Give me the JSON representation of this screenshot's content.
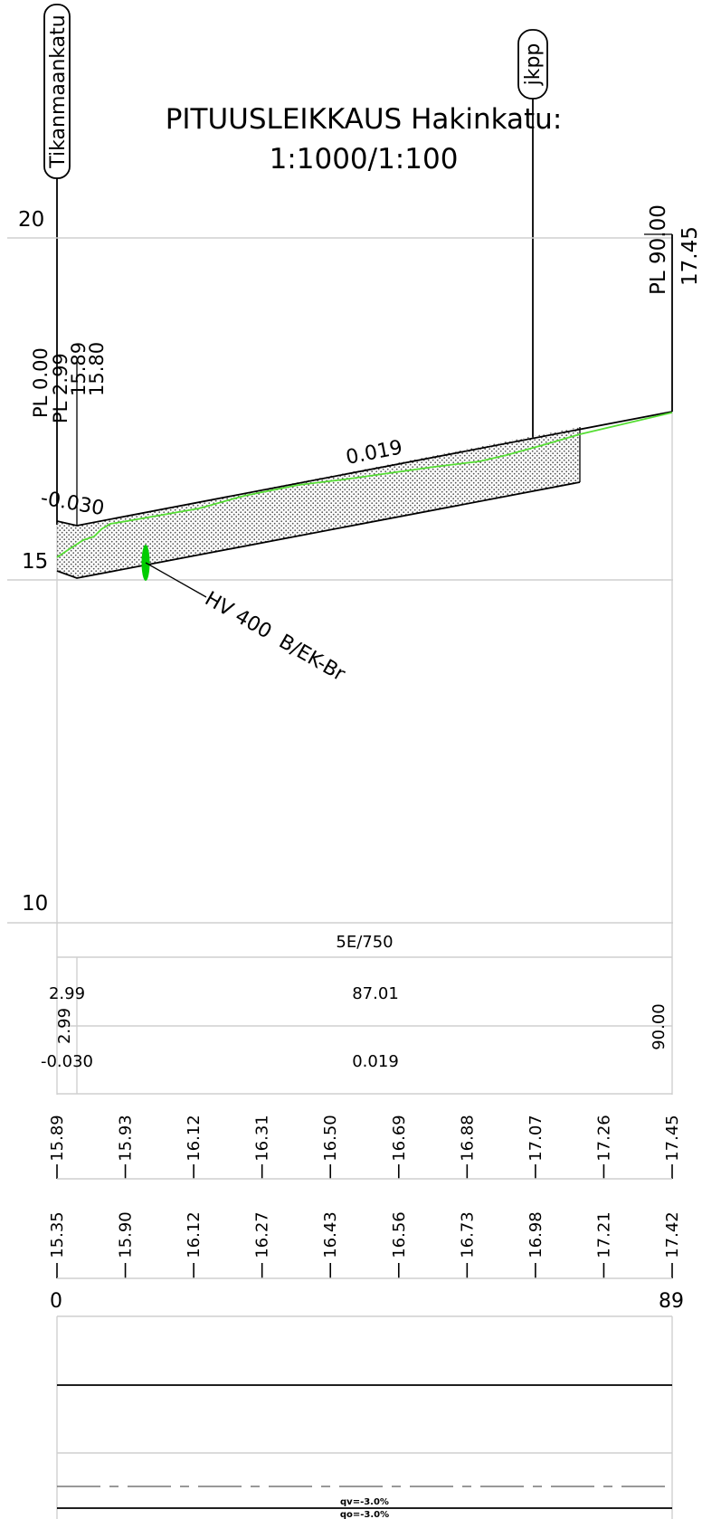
{
  "title_line1": "PITUUSLEIKKAUS Hakinkatu:",
  "title_line2": "1:1000/1:100",
  "street_tags": {
    "left": "Tikanmaankatu",
    "right": "jkpp"
  },
  "elevation_labels": [
    "20",
    "15",
    "10"
  ],
  "station_labels": {
    "pl0": "PL 0.00",
    "pl2": "PL 2.99",
    "v1589": "15.89",
    "v1580": "15.80",
    "pl90": "PL 90.00",
    "v1745": "17.45"
  },
  "grade_labels": {
    "top_left": "-0.030",
    "top_mid": "0.019"
  },
  "pipe_label": "HV 400  B/EK-Br",
  "band": {
    "curve_label": "5E/750",
    "len_left": "2.99",
    "len_mid": "87.01",
    "len_rot": "2.99",
    "end_rot": "90.00",
    "grade_left": "-0.030",
    "grade_mid": "0.019"
  },
  "design_heights": [
    "15.89",
    "15.93",
    "16.12",
    "16.31",
    "16.50",
    "16.69",
    "16.88",
    "17.07",
    "17.26",
    "17.45"
  ],
  "ground_heights": [
    "15.35",
    "15.90",
    "16.12",
    "16.27",
    "16.43",
    "16.56",
    "16.73",
    "16.98",
    "17.21",
    "17.42"
  ],
  "axis_ends": {
    "start": "0",
    "end": "89"
  },
  "crossfall": {
    "qv": "qv=-3.0%",
    "qo": "qo=-3.0%"
  },
  "colors": {
    "profile_green": "#55dd33",
    "pipe_marker": "#00cc00",
    "grid": "#cfcfcf"
  }
}
